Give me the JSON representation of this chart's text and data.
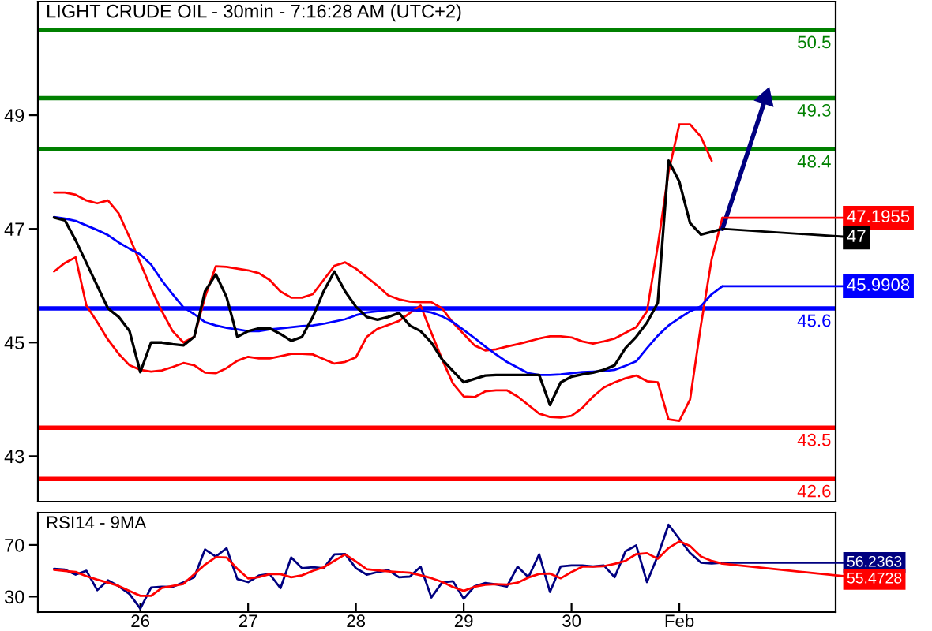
{
  "chart_data": [
    {
      "type": "line",
      "title": "LIGHT CRUDE OIL - 30min - 7:16:28 AM (UTC+2)",
      "ylim": [
        42.2,
        51.0
      ],
      "yticks": [
        43,
        45,
        47,
        49
      ],
      "tick_labels": "y",
      "categories": [
        null,
        null,
        null,
        null,
        null,
        null,
        null,
        null,
        null,
        null,
        null,
        null,
        null,
        null,
        null,
        null,
        null,
        null,
        null,
        null,
        null,
        null,
        null,
        null,
        null,
        null,
        null,
        null,
        null,
        null,
        null,
        null,
        null,
        null,
        null,
        null,
        null,
        null,
        null,
        null,
        null,
        null,
        null,
        null,
        null,
        null,
        null,
        null,
        null,
        null,
        null,
        null,
        null,
        null,
        null,
        null,
        null,
        null,
        null,
        null,
        null,
        null,
        null,
        null,
        null,
        null,
        null,
        null,
        null,
        null,
        null,
        null,
        null,
        null
      ],
      "series": [
        {
          "color": "#ff0000",
          "values": [
            null,
            47.64,
            47.64,
            47.6,
            47.5,
            47.45,
            47.5,
            47.27,
            46.85,
            46.4,
            45.95,
            45.55,
            45.2,
            45.0,
            45.1,
            45.8,
            46.34,
            46.33,
            46.3,
            46.27,
            46.22,
            46.1,
            45.9,
            45.79,
            45.79,
            45.85,
            46.1,
            46.35,
            46.41,
            46.3,
            46.15,
            46.0,
            45.83,
            45.76,
            45.72,
            45.71,
            45.71,
            45.6,
            45.35,
            45.15,
            44.95,
            44.86,
            44.88,
            44.93,
            44.97,
            45.02,
            45.07,
            45.11,
            45.11,
            45.09,
            45.02,
            44.98,
            45.02,
            45.07,
            45.17,
            45.27,
            45.55,
            46.7,
            48.0,
            48.84,
            48.84,
            48.62,
            48.2,
            null,
            null,
            null,
            null,
            null,
            null,
            null,
            null,
            null,
            null,
            null
          ]
        },
        {
          "color": "#ff0000",
          "values": [
            null,
            46.25,
            46.4,
            46.5,
            45.65,
            45.36,
            45.05,
            44.8,
            44.6,
            44.52,
            44.49,
            44.51,
            44.57,
            44.64,
            44.6,
            44.47,
            44.46,
            44.55,
            44.68,
            44.75,
            44.72,
            44.72,
            44.76,
            44.8,
            44.8,
            44.79,
            44.71,
            44.63,
            44.66,
            44.74,
            45.1,
            45.24,
            45.31,
            45.38,
            45.52,
            45.65,
            45.17,
            44.7,
            44.28,
            44.05,
            44.04,
            44.14,
            44.16,
            44.16,
            44.05,
            43.9,
            43.75,
            43.69,
            43.68,
            43.71,
            43.85,
            44.05,
            44.21,
            44.3,
            44.37,
            44.42,
            44.32,
            44.3,
            43.65,
            43.62,
            44.0,
            45.3,
            46.47,
            47.1955,
            null,
            null,
            null,
            null,
            null,
            null,
            null,
            null,
            null,
            null
          ],
          "value_labels": [
            null,
            null,
            null,
            null,
            null,
            null,
            null,
            null,
            null,
            null,
            null,
            null,
            null,
            null,
            null,
            null,
            null,
            null,
            null,
            null,
            null,
            null,
            null,
            null,
            null,
            null,
            null,
            null,
            null,
            null,
            null,
            null,
            null,
            null,
            null,
            null,
            null,
            null,
            null,
            null,
            null,
            null,
            null,
            null,
            null,
            null,
            null,
            null,
            null,
            null,
            null,
            null,
            null,
            null,
            null,
            null,
            null,
            null,
            null,
            null,
            null,
            null,
            null,
            "47.1955",
            null,
            null,
            null,
            null,
            null,
            null,
            null,
            null,
            null,
            null
          ]
        },
        {
          "color": "#0000ff",
          "values": [
            null,
            47.21,
            47.18,
            47.14,
            47.06,
            46.98,
            46.89,
            46.76,
            46.65,
            46.55,
            46.37,
            46.09,
            45.85,
            45.62,
            45.5,
            45.36,
            45.3,
            45.26,
            45.23,
            45.2,
            45.2,
            45.23,
            45.25,
            45.27,
            45.29,
            45.3,
            45.33,
            45.37,
            45.41,
            45.48,
            45.53,
            45.55,
            45.57,
            45.57,
            45.57,
            45.56,
            45.53,
            45.46,
            45.36,
            45.22,
            45.08,
            44.93,
            44.79,
            44.66,
            44.56,
            44.46,
            44.43,
            44.43,
            44.44,
            44.46,
            44.48,
            44.49,
            44.5,
            44.52,
            44.59,
            44.67,
            44.9,
            45.12,
            45.3,
            45.43,
            45.55,
            45.64,
            45.85,
            45.9908,
            null,
            null,
            null,
            null,
            null,
            null,
            null,
            null,
            null,
            null
          ],
          "value_labels": [
            null,
            null,
            null,
            null,
            null,
            null,
            null,
            null,
            null,
            null,
            null,
            null,
            null,
            null,
            null,
            null,
            null,
            null,
            null,
            null,
            null,
            null,
            null,
            null,
            null,
            null,
            null,
            null,
            null,
            null,
            null,
            null,
            null,
            null,
            null,
            null,
            null,
            null,
            null,
            null,
            null,
            null,
            null,
            null,
            null,
            null,
            null,
            null,
            null,
            null,
            null,
            null,
            null,
            null,
            null,
            null,
            null,
            null,
            null,
            null,
            null,
            null,
            null,
            "45.9908",
            null,
            null,
            null,
            null,
            null,
            null,
            null,
            null,
            null,
            null
          ]
        },
        {
          "color": "#000000",
          "values": [
            null,
            47.2,
            47.15,
            46.8,
            46.4,
            46.0,
            45.6,
            45.45,
            45.2,
            44.48,
            45.0,
            45.0,
            44.97,
            44.95,
            45.1,
            45.9,
            46.2,
            45.8,
            45.1,
            45.2,
            45.25,
            45.25,
            45.15,
            45.03,
            45.1,
            45.45,
            45.9,
            46.25,
            45.9,
            45.63,
            45.45,
            45.4,
            45.45,
            45.52,
            45.3,
            45.2,
            45.0,
            44.7,
            44.5,
            44.3,
            44.36,
            44.42,
            44.43,
            44.43,
            44.43,
            44.43,
            44.43,
            43.9,
            44.3,
            44.4,
            44.44,
            44.47,
            44.52,
            44.6,
            44.9,
            45.1,
            45.35,
            45.7,
            48.2,
            47.83,
            47.1,
            46.9,
            46.95,
            47,
            null,
            null,
            null,
            null,
            null,
            null,
            null,
            null,
            null,
            null
          ],
          "value_labels": [
            null,
            null,
            null,
            null,
            null,
            null,
            null,
            null,
            null,
            null,
            null,
            null,
            null,
            null,
            null,
            null,
            null,
            null,
            null,
            null,
            null,
            null,
            null,
            null,
            null,
            null,
            null,
            null,
            null,
            null,
            null,
            null,
            null,
            null,
            null,
            null,
            null,
            null,
            null,
            null,
            null,
            null,
            null,
            null,
            null,
            null,
            null,
            null,
            null,
            null,
            null,
            null,
            null,
            null,
            null,
            null,
            null,
            null,
            null,
            null,
            null,
            null,
            null,
            "47",
            null,
            null,
            null,
            null,
            null,
            null,
            null,
            null,
            null,
            null
          ]
        },
        {
          "type": "line",
          "marker": "triangle",
          "color": "#000080",
          "values": [
            null,
            null,
            null,
            null,
            null,
            null,
            null,
            null,
            null,
            null,
            null,
            null,
            null,
            null,
            null,
            null,
            null,
            null,
            null,
            null,
            null,
            null,
            null,
            null,
            null,
            null,
            null,
            null,
            null,
            null,
            null,
            null,
            null,
            null,
            null,
            null,
            null,
            null,
            null,
            null,
            null,
            null,
            null,
            null,
            null,
            null,
            null,
            null,
            null,
            null,
            null,
            null,
            null,
            null,
            null,
            null,
            null,
            null,
            null,
            null,
            null,
            null,
            null,
            47,
            null,
            null,
            null,
            49.3,
            null,
            null,
            null,
            null,
            null,
            null
          ]
        }
      ],
      "ref_lines": [
        {
          "axis": "y",
          "value": 50.5,
          "label": "50.5",
          "color": "#008000"
        },
        {
          "axis": "y",
          "value": 49.3,
          "label": "49.3",
          "color": "#008000"
        },
        {
          "axis": "y",
          "value": 48.4,
          "label": "48.4",
          "color": "#008000"
        },
        {
          "axis": "y",
          "value": 45.6,
          "label": "45.6",
          "color": "#0000ff"
        },
        {
          "axis": "y",
          "value": 43.5,
          "label": "43.5",
          "color": "#ff0000"
        },
        {
          "axis": "y",
          "value": 42.6,
          "label": "42.6",
          "color": "#ff0000"
        }
      ]
    },
    {
      "type": "line",
      "title": "RSI14 - 9MA",
      "ylim": [
        18,
        95
      ],
      "yticks": [
        30,
        70
      ],
      "categories": [
        null,
        null,
        null,
        null,
        null,
        null,
        null,
        null,
        null,
        "26",
        null,
        null,
        null,
        null,
        null,
        null,
        null,
        null,
        null,
        "27",
        null,
        null,
        null,
        null,
        null,
        null,
        null,
        null,
        null,
        "28",
        null,
        null,
        null,
        null,
        null,
        null,
        null,
        null,
        null,
        "29",
        null,
        null,
        null,
        null,
        null,
        null,
        null,
        null,
        null,
        "30",
        null,
        null,
        null,
        null,
        null,
        null,
        null,
        null,
        null,
        "Feb",
        null,
        null,
        null,
        null,
        null,
        null,
        null,
        null,
        null,
        null,
        null,
        null,
        null,
        null
      ],
      "series": [
        {
          "color": "#000080",
          "values": [
            null,
            51.5,
            50.9,
            47,
            50,
            35,
            42.6,
            38,
            32,
            20.7,
            37,
            37.6,
            37.5,
            41,
            45,
            66.5,
            61,
            67.5,
            43.6,
            41.2,
            46.3,
            47.5,
            36.5,
            60.3,
            52,
            52.8,
            52,
            62.7,
            63,
            52,
            47,
            49,
            50.5,
            45,
            45.5,
            53.2,
            29.3,
            41,
            41.9,
            28.3,
            38,
            40.5,
            39.4,
            37.7,
            53.2,
            45,
            62.7,
            33.6,
            53.4,
            54.1,
            54.1,
            53.4,
            54.1,
            45,
            65,
            69.6,
            41.2,
            61.5,
            85.7,
            74.7,
            63.8,
            56.3,
            55.6,
            56.2363,
            null,
            null,
            null,
            null,
            null,
            null,
            null,
            null,
            null,
            null
          ],
          "value_labels": [
            null,
            null,
            null,
            null,
            null,
            null,
            null,
            null,
            null,
            null,
            null,
            null,
            null,
            null,
            null,
            null,
            null,
            null,
            null,
            null,
            null,
            null,
            null,
            null,
            null,
            null,
            null,
            null,
            null,
            null,
            null,
            null,
            null,
            null,
            null,
            null,
            null,
            null,
            null,
            null,
            null,
            null,
            null,
            null,
            null,
            null,
            null,
            null,
            null,
            null,
            null,
            null,
            null,
            null,
            null,
            null,
            null,
            null,
            null,
            null,
            null,
            null,
            null,
            "56.2363",
            null,
            null,
            null,
            null,
            null,
            null,
            null,
            null,
            null,
            null
          ]
        },
        {
          "color": "#ff0000",
          "values": [
            null,
            50.7,
            49.9,
            49.1,
            45.8,
            43.1,
            40.8,
            38.2,
            34.4,
            30.6,
            30.6,
            36.7,
            38.2,
            39.8,
            47.3,
            54.8,
            60.5,
            60.3,
            51.5,
            44.1,
            45.1,
            47.4,
            47.4,
            45,
            46.5,
            49.9,
            52.7,
            57.7,
            62.7,
            57.2,
            51.2,
            50.3,
            49.5,
            49,
            48.5,
            46.5,
            44.3,
            41.4,
            37.4,
            34.4,
            37.6,
            39.2,
            39.6,
            39.3,
            40.8,
            44.8,
            47.6,
            47.8,
            44.2,
            49,
            53.2,
            53.2,
            53.6,
            55.4,
            57.6,
            62.9,
            63.6,
            59.3,
            67.6,
            72.8,
            69.2,
            61.1,
            57.6,
            55.4728,
            null,
            null,
            null,
            null,
            null,
            null,
            null,
            null,
            null,
            null
          ],
          "value_labels": [
            null,
            null,
            null,
            null,
            null,
            null,
            null,
            null,
            null,
            null,
            null,
            null,
            null,
            null,
            null,
            null,
            null,
            null,
            null,
            null,
            null,
            null,
            null,
            null,
            null,
            null,
            null,
            null,
            null,
            null,
            null,
            null,
            null,
            null,
            null,
            null,
            null,
            null,
            null,
            null,
            null,
            null,
            null,
            null,
            null,
            null,
            null,
            null,
            null,
            null,
            null,
            null,
            null,
            null,
            null,
            null,
            null,
            null,
            null,
            null,
            null,
            null,
            null,
            "55.4728",
            null,
            null,
            null,
            null,
            null,
            null,
            null,
            null,
            null,
            null
          ]
        }
      ]
    }
  ]
}
